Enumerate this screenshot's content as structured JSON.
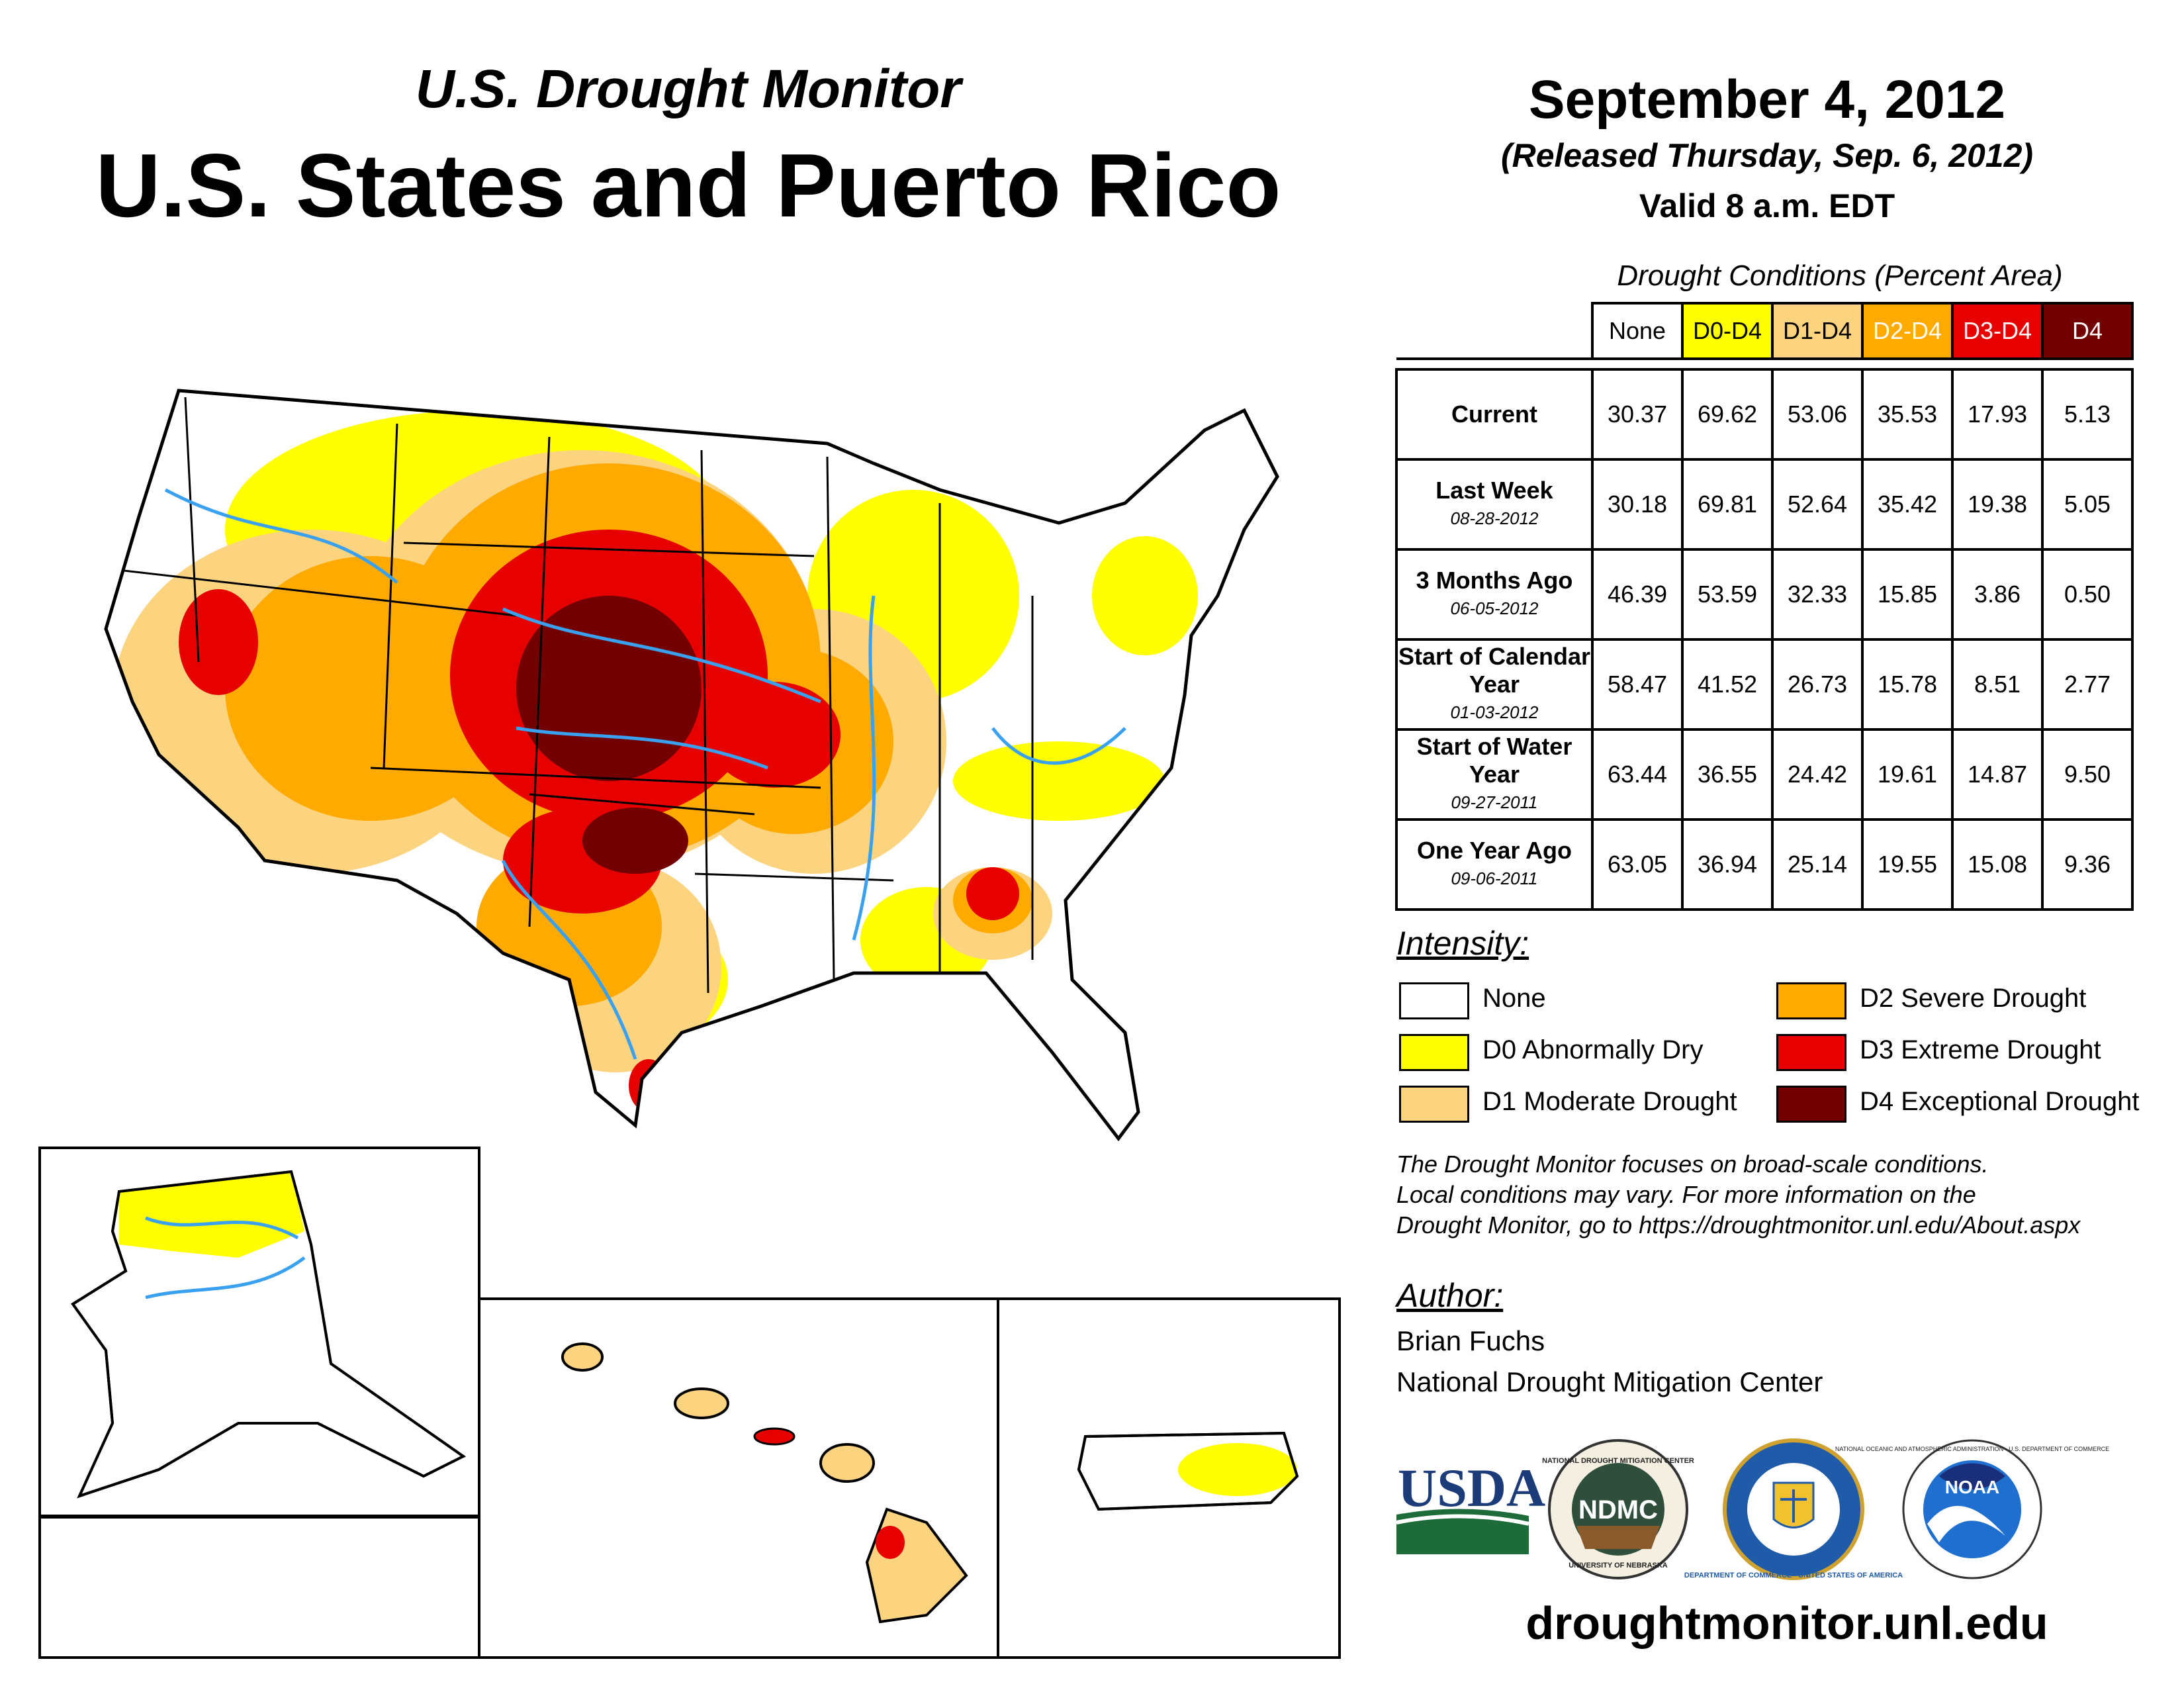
{
  "header": {
    "subtitle": "U.S. Drought Monitor",
    "title": "U.S. States and Puerto Rico",
    "date": "September 4, 2012",
    "released": "(Released Thursday, Sep. 6, 2012)",
    "valid": "Valid 8 a.m. EDT"
  },
  "table": {
    "caption": "Drought Conditions (Percent Area)",
    "columns": [
      "None",
      "D0-D4",
      "D1-D4",
      "D2-D4",
      "D3-D4",
      "D4"
    ],
    "rows": [
      {
        "label": "Current",
        "date": "",
        "values": [
          "30.37",
          "69.62",
          "53.06",
          "35.53",
          "17.93",
          "5.13"
        ]
      },
      {
        "label": "Last Week",
        "date": "08-28-2012",
        "values": [
          "30.18",
          "69.81",
          "52.64",
          "35.42",
          "19.38",
          "5.05"
        ]
      },
      {
        "label": "3 Months Ago",
        "date": "06-05-2012",
        "values": [
          "46.39",
          "53.59",
          "32.33",
          "15.85",
          "3.86",
          "0.50"
        ]
      },
      {
        "label": "Start of Calendar Year",
        "date": "01-03-2012",
        "values": [
          "58.47",
          "41.52",
          "26.73",
          "15.78",
          "8.51",
          "2.77"
        ]
      },
      {
        "label": "Start of Water Year",
        "date": "09-27-2011",
        "values": [
          "63.44",
          "36.55",
          "24.42",
          "19.61",
          "14.87",
          "9.50"
        ]
      },
      {
        "label": "One Year Ago",
        "date": "09-06-2011",
        "values": [
          "63.05",
          "36.94",
          "25.14",
          "19.55",
          "15.08",
          "9.36"
        ]
      }
    ]
  },
  "legend": {
    "title": "Intensity:",
    "items": [
      {
        "label": "None",
        "color": "#ffffff"
      },
      {
        "label": "D0 Abnormally Dry",
        "color": "#ffff00"
      },
      {
        "label": "D1 Moderate Drought",
        "color": "#fcd37f"
      },
      {
        "label": "D2 Severe Drought",
        "color": "#ffaa00"
      },
      {
        "label": "D3 Extreme Drought",
        "color": "#e60000"
      },
      {
        "label": "D4 Exceptional Drought",
        "color": "#730000"
      }
    ]
  },
  "note": [
    "The Drought Monitor focuses on broad-scale conditions.",
    "Local conditions may vary. For more information on the",
    "Drought Monitor, go to https://droughtmonitor.unl.edu/About.aspx"
  ],
  "author": {
    "label": "Author:",
    "name": "Brian Fuchs",
    "org": "National Drought Mitigation Center"
  },
  "logos": {
    "usda": "USDA",
    "ndmc": "NDMC",
    "ndmc_ring_top": "NATIONAL DROUGHT MITIGATION CENTER",
    "ndmc_ring_bottom": "UNIVERSITY OF NEBRASKA",
    "commerce_ring": "DEPARTMENT OF COMMERCE · UNITED STATES OF AMERICA",
    "noaa": "NOAA",
    "noaa_ring": "NATIONAL OCEANIC AND ATMOSPHERIC ADMINISTRATION · U.S. DEPARTMENT OF COMMERCE"
  },
  "footer": {
    "url": "droughtmonitor.unl.edu"
  },
  "colors": {
    "none": "#ffffff",
    "d0": "#ffff00",
    "d1": "#fcd37f",
    "d2": "#ffaa00",
    "d3": "#e60000",
    "d4": "#730000",
    "river": "#3aa0f0"
  }
}
